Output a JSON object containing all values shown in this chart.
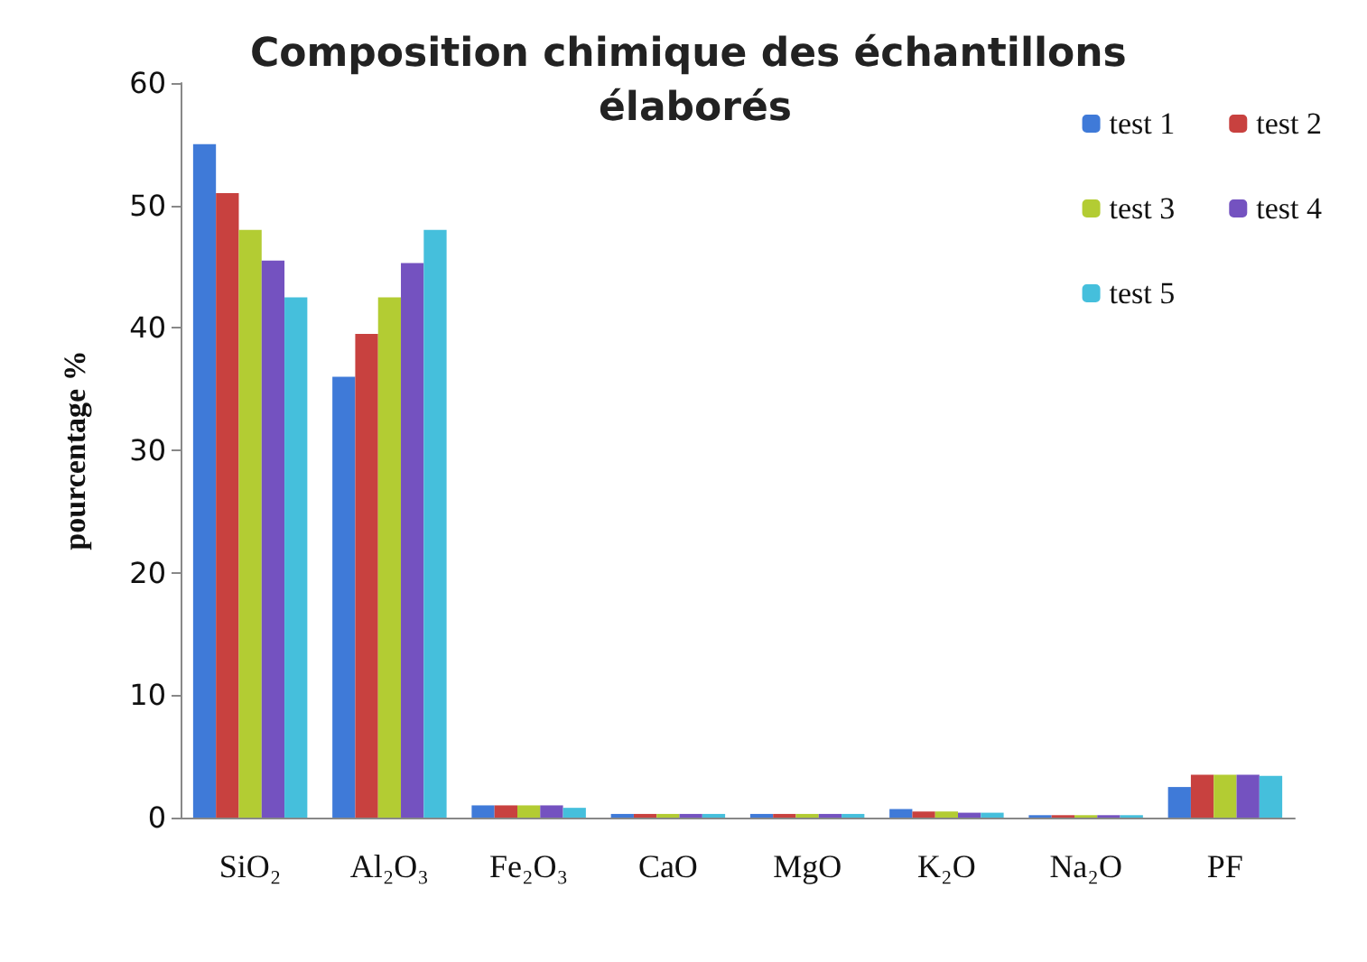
{
  "chart_data": {
    "type": "bar",
    "title": "Composition chimique des échantillons élaborés",
    "ylabel": "pourcentage %",
    "categories": [
      "SiO₂",
      "Al₂O₃",
      "Fe₂O₃",
      "CaO",
      "MgO",
      "K₂O",
      "Na₂O",
      "PF"
    ],
    "series": [
      {
        "name": "test 1",
        "color": "#3f7ad8",
        "values": [
          55,
          36,
          1,
          0.3,
          0.3,
          0.7,
          0.2,
          2.5
        ]
      },
      {
        "name": "test 2",
        "color": "#c8413f",
        "values": [
          51,
          39.5,
          1,
          0.3,
          0.3,
          0.5,
          0.2,
          3.5
        ]
      },
      {
        "name": "test 3",
        "color": "#b3cc33",
        "values": [
          48,
          42.5,
          1,
          0.3,
          0.3,
          0.5,
          0.2,
          3.5
        ]
      },
      {
        "name": "test 4",
        "color": "#7452c0",
        "values": [
          45.5,
          45.3,
          1,
          0.3,
          0.3,
          0.4,
          0.2,
          3.5
        ]
      },
      {
        "name": "test 5",
        "color": "#45bfdc",
        "values": [
          42.5,
          48,
          0.8,
          0.3,
          0.3,
          0.4,
          0.2,
          3.4
        ]
      }
    ],
    "ylim": [
      0,
      60
    ],
    "yticks": [
      0,
      10,
      20,
      30,
      40,
      50,
      60
    ],
    "grid": false,
    "legend": "top right"
  }
}
